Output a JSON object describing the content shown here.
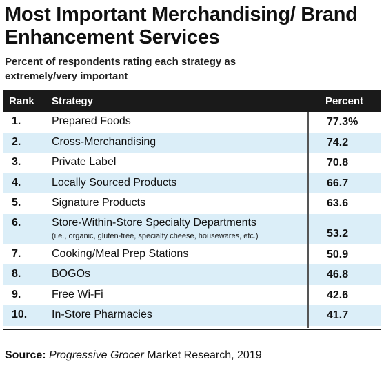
{
  "title": "Most Important Merchandising/ Brand Enhancement Services",
  "subtitle": "Percent of respondents rating each strategy as extremely/very important",
  "source": {
    "label": "Source:",
    "publication": "Progressive Grocer",
    "rest": " Market Research, 2019"
  },
  "chart_data": {
    "type": "table",
    "columns": [
      "Rank",
      "Strategy",
      "Percent"
    ],
    "rows": [
      {
        "rank": "1.",
        "strategy": "Prepared Foods",
        "percent": "77.3%",
        "note": ""
      },
      {
        "rank": "2.",
        "strategy": "Cross-Merchandising",
        "percent": "74.2",
        "note": ""
      },
      {
        "rank": "3.",
        "strategy": "Private Label",
        "percent": "70.8",
        "note": ""
      },
      {
        "rank": "4.",
        "strategy": "Locally Sourced Products",
        "percent": "66.7",
        "note": ""
      },
      {
        "rank": "5.",
        "strategy": "Signature Products",
        "percent": "63.6",
        "note": ""
      },
      {
        "rank": "6.",
        "strategy": "Store-Within-Store Specialty Departments",
        "percent": "53.2",
        "note": "(i.e., organic, gluten-free, specialty cheese, housewares, etc.)"
      },
      {
        "rank": "7.",
        "strategy": "Cooking/Meal Prep Stations",
        "percent": "50.9",
        "note": ""
      },
      {
        "rank": "8.",
        "strategy": "BOGOs",
        "percent": "46.8",
        "note": ""
      },
      {
        "rank": "9.",
        "strategy": "Free Wi-Fi",
        "percent": "42.6",
        "note": ""
      },
      {
        "rank": "10.",
        "strategy": "In-Store Pharmacies",
        "percent": "41.7",
        "note": ""
      }
    ]
  },
  "colors": {
    "header_bg": "#1a1a1a",
    "shaded_row": "#dbeef8",
    "text": "#111111"
  }
}
